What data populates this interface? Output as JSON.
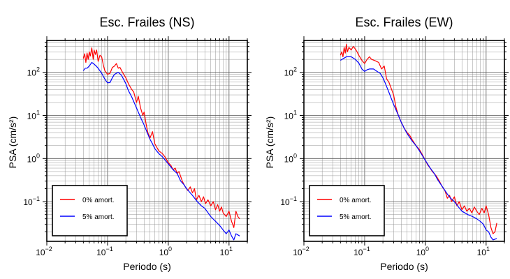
{
  "chart_data": [
    {
      "type": "line",
      "title": "Esc. Frailes (NS)",
      "xlabel": "Periodo (s)",
      "ylabel": "PSA (cm/s²)",
      "xscale": "log",
      "yscale": "log",
      "xlim": [
        0.01,
        20
      ],
      "ylim": [
        0.012,
        550
      ],
      "x_tick_labels": [
        {
          "base": "10",
          "exp": "−2"
        },
        {
          "base": "10",
          "exp": "−1"
        },
        {
          "base": "10",
          "exp": "0"
        },
        {
          "base": "10",
          "exp": "1"
        }
      ],
      "y_tick_labels": [
        {
          "base": "10",
          "exp": "−1"
        },
        {
          "base": "10",
          "exp": "0"
        },
        {
          "base": "10",
          "exp": "1"
        },
        {
          "base": "10",
          "exp": "2"
        }
      ],
      "grid": true,
      "legend_position": "bottom-left",
      "series": [
        {
          "name": "0% amort.",
          "color": "#ff0000",
          "points": [
            [
              0.04,
              210
            ],
            [
              0.042,
              270
            ],
            [
              0.044,
              170
            ],
            [
              0.046,
              280
            ],
            [
              0.048,
              200
            ],
            [
              0.05,
              300
            ],
            [
              0.052,
              240
            ],
            [
              0.055,
              370
            ],
            [
              0.058,
              200
            ],
            [
              0.06,
              330
            ],
            [
              0.063,
              260
            ],
            [
              0.066,
              330
            ],
            [
              0.07,
              180
            ],
            [
              0.075,
              250
            ],
            [
              0.08,
              230
            ],
            [
              0.085,
              150
            ],
            [
              0.09,
              110
            ],
            [
              0.1,
              90
            ],
            [
              0.11,
              95
            ],
            [
              0.12,
              130
            ],
            [
              0.13,
              140
            ],
            [
              0.14,
              160
            ],
            [
              0.15,
              125
            ],
            [
              0.16,
              130
            ],
            [
              0.18,
              95
            ],
            [
              0.2,
              75
            ],
            [
              0.22,
              55
            ],
            [
              0.25,
              40
            ],
            [
              0.27,
              35
            ],
            [
              0.3,
              20
            ],
            [
              0.32,
              28
            ],
            [
              0.35,
              15
            ],
            [
              0.38,
              10
            ],
            [
              0.4,
              12
            ],
            [
              0.43,
              6.5
            ],
            [
              0.46,
              4
            ],
            [
              0.5,
              3
            ],
            [
              0.55,
              4.2
            ],
            [
              0.6,
              2.2
            ],
            [
              0.65,
              1.8
            ],
            [
              0.7,
              1.5
            ],
            [
              0.75,
              1.4
            ],
            [
              0.8,
              1.3
            ],
            [
              0.9,
              1.05
            ],
            [
              1.0,
              0.8
            ],
            [
              1.1,
              0.7
            ],
            [
              1.2,
              0.55
            ],
            [
              1.3,
              0.6
            ],
            [
              1.4,
              0.45
            ],
            [
              1.5,
              0.5
            ],
            [
              1.7,
              0.3
            ],
            [
              1.9,
              0.22
            ],
            [
              2.1,
              0.18
            ],
            [
              2.3,
              0.22
            ],
            [
              2.5,
              0.16
            ],
            [
              2.7,
              0.2
            ],
            [
              2.9,
              0.11
            ],
            [
              3.2,
              0.14
            ],
            [
              3.5,
              0.1
            ],
            [
              3.8,
              0.13
            ],
            [
              4.1,
              0.09
            ],
            [
              4.5,
              0.11
            ],
            [
              5.0,
              0.08
            ],
            [
              5.5,
              0.1
            ],
            [
              6.0,
              0.065
            ],
            [
              6.5,
              0.085
            ],
            [
              7.0,
              0.06
            ],
            [
              7.5,
              0.075
            ],
            [
              8.0,
              0.055
            ],
            [
              9.0,
              0.045
            ],
            [
              10.0,
              0.06
            ],
            [
              11.0,
              0.035
            ],
            [
              12.0,
              0.025
            ],
            [
              13.0,
              0.06
            ],
            [
              14.0,
              0.045
            ],
            [
              15.0,
              0.04
            ]
          ]
        },
        {
          "name": "5% amort.",
          "color": "#0000ff",
          "points": [
            [
              0.04,
              110
            ],
            [
              0.043,
              125
            ],
            [
              0.046,
              125
            ],
            [
              0.05,
              140
            ],
            [
              0.055,
              170
            ],
            [
              0.06,
              155
            ],
            [
              0.065,
              140
            ],
            [
              0.07,
              125
            ],
            [
              0.08,
              95
            ],
            [
              0.09,
              70
            ],
            [
              0.1,
              57
            ],
            [
              0.11,
              58
            ],
            [
              0.12,
              75
            ],
            [
              0.13,
              90
            ],
            [
              0.15,
              100
            ],
            [
              0.17,
              85
            ],
            [
              0.2,
              55
            ],
            [
              0.22,
              38
            ],
            [
              0.25,
              27
            ],
            [
              0.3,
              15
            ],
            [
              0.35,
              9
            ],
            [
              0.4,
              6
            ],
            [
              0.45,
              4
            ],
            [
              0.5,
              2.8
            ],
            [
              0.55,
              2.2
            ],
            [
              0.6,
              1.7
            ],
            [
              0.7,
              1.3
            ],
            [
              0.8,
              1.1
            ],
            [
              0.9,
              0.9
            ],
            [
              1.0,
              0.75
            ],
            [
              1.2,
              0.55
            ],
            [
              1.4,
              0.45
            ],
            [
              1.6,
              0.3
            ],
            [
              1.8,
              0.25
            ],
            [
              2.0,
              0.2
            ],
            [
              2.5,
              0.14
            ],
            [
              3.0,
              0.1
            ],
            [
              3.5,
              0.08
            ],
            [
              4.0,
              0.07
            ],
            [
              5.0,
              0.045
            ],
            [
              6.0,
              0.035
            ],
            [
              7.0,
              0.028
            ],
            [
              8.0,
              0.022
            ],
            [
              9.0,
              0.018
            ],
            [
              10.0,
              0.022
            ],
            [
              11.0,
              0.016
            ],
            [
              12.0,
              0.013
            ],
            [
              13.0,
              0.018
            ],
            [
              15.0,
              0.016
            ]
          ]
        }
      ]
    },
    {
      "type": "line",
      "title": "Esc. Frailes (EW)",
      "xlabel": "Periodo (s)",
      "ylabel": "PSA (cm/s²)",
      "xscale": "log",
      "yscale": "log",
      "xlim": [
        0.01,
        20
      ],
      "ylim": [
        0.012,
        550
      ],
      "x_tick_labels": [
        {
          "base": "10",
          "exp": "−2"
        },
        {
          "base": "10",
          "exp": "−1"
        },
        {
          "base": "10",
          "exp": "0"
        },
        {
          "base": "10",
          "exp": "1"
        }
      ],
      "y_tick_labels": [
        {
          "base": "10",
          "exp": "−1"
        },
        {
          "base": "10",
          "exp": "0"
        },
        {
          "base": "10",
          "exp": "1"
        },
        {
          "base": "10",
          "exp": "2"
        }
      ],
      "grid": true,
      "legend_position": "bottom-left",
      "series": [
        {
          "name": "0% amort.",
          "color": "#ff0000",
          "points": [
            [
              0.04,
              250
            ],
            [
              0.042,
              300
            ],
            [
              0.044,
              230
            ],
            [
              0.046,
              380
            ],
            [
              0.048,
              280
            ],
            [
              0.05,
              450
            ],
            [
              0.052,
              300
            ],
            [
              0.055,
              380
            ],
            [
              0.06,
              330
            ],
            [
              0.065,
              400
            ],
            [
              0.07,
              350
            ],
            [
              0.075,
              300
            ],
            [
              0.08,
              250
            ],
            [
              0.09,
              190
            ],
            [
              0.1,
              160
            ],
            [
              0.11,
              200
            ],
            [
              0.12,
              230
            ],
            [
              0.13,
              200
            ],
            [
              0.15,
              185
            ],
            [
              0.17,
              170
            ],
            [
              0.19,
              120
            ],
            [
              0.21,
              140
            ],
            [
              0.23,
              70
            ],
            [
              0.25,
              60
            ],
            [
              0.27,
              45
            ],
            [
              0.3,
              30
            ],
            [
              0.33,
              15
            ],
            [
              0.36,
              10
            ],
            [
              0.4,
              7
            ],
            [
              0.45,
              5
            ],
            [
              0.5,
              4
            ],
            [
              0.55,
              3.5
            ],
            [
              0.6,
              2.8
            ],
            [
              0.7,
              2
            ],
            [
              0.8,
              1.6
            ],
            [
              0.9,
              1.2
            ],
            [
              1.0,
              0.9
            ],
            [
              1.1,
              0.7
            ],
            [
              1.2,
              0.6
            ],
            [
              1.3,
              0.5
            ],
            [
              1.5,
              0.4
            ],
            [
              1.7,
              0.3
            ],
            [
              1.9,
              0.22
            ],
            [
              2.1,
              0.18
            ],
            [
              2.3,
              0.12
            ],
            [
              2.5,
              0.14
            ],
            [
              2.7,
              0.1
            ],
            [
              3.0,
              0.13
            ],
            [
              3.3,
              0.08
            ],
            [
              3.6,
              0.1
            ],
            [
              4.0,
              0.065
            ],
            [
              4.4,
              0.08
            ],
            [
              4.8,
              0.06
            ],
            [
              5.3,
              0.07
            ],
            [
              5.8,
              0.055
            ],
            [
              6.4,
              0.075
            ],
            [
              7.0,
              0.06
            ],
            [
              7.7,
              0.05
            ],
            [
              8.5,
              0.07
            ],
            [
              9.3,
              0.055
            ],
            [
              10.0,
              0.08
            ],
            [
              11.0,
              0.05
            ],
            [
              12.0,
              0.025
            ],
            [
              13.0,
              0.018
            ],
            [
              14.0,
              0.02
            ],
            [
              15.0,
              0.032
            ]
          ]
        },
        {
          "name": "5% amort.",
          "color": "#0000ff",
          "points": [
            [
              0.04,
              190
            ],
            [
              0.045,
              210
            ],
            [
              0.05,
              230
            ],
            [
              0.06,
              230
            ],
            [
              0.07,
              200
            ],
            [
              0.08,
              165
            ],
            [
              0.09,
              120
            ],
            [
              0.1,
              105
            ],
            [
              0.11,
              115
            ],
            [
              0.12,
              120
            ],
            [
              0.14,
              120
            ],
            [
              0.16,
              105
            ],
            [
              0.18,
              95
            ],
            [
              0.2,
              75
            ],
            [
              0.22,
              55
            ],
            [
              0.25,
              35
            ],
            [
              0.3,
              18
            ],
            [
              0.35,
              11
            ],
            [
              0.4,
              7
            ],
            [
              0.45,
              5
            ],
            [
              0.5,
              3.8
            ],
            [
              0.6,
              2.6
            ],
            [
              0.7,
              2
            ],
            [
              0.8,
              1.5
            ],
            [
              0.9,
              1.15
            ],
            [
              1.0,
              0.9
            ],
            [
              1.2,
              0.6
            ],
            [
              1.4,
              0.45
            ],
            [
              1.6,
              0.32
            ],
            [
              1.8,
              0.25
            ],
            [
              2.0,
              0.2
            ],
            [
              2.3,
              0.15
            ],
            [
              2.6,
              0.12
            ],
            [
              3.0,
              0.1
            ],
            [
              3.5,
              0.075
            ],
            [
              4.0,
              0.06
            ],
            [
              5.0,
              0.05
            ],
            [
              6.0,
              0.045
            ],
            [
              7.0,
              0.04
            ],
            [
              8.0,
              0.035
            ],
            [
              9.0,
              0.03
            ],
            [
              10.0,
              0.022
            ],
            [
              11.0,
              0.02
            ],
            [
              12.0,
              0.015
            ],
            [
              13.0,
              0.013
            ],
            [
              15.0,
              0.014
            ]
          ]
        }
      ]
    }
  ]
}
